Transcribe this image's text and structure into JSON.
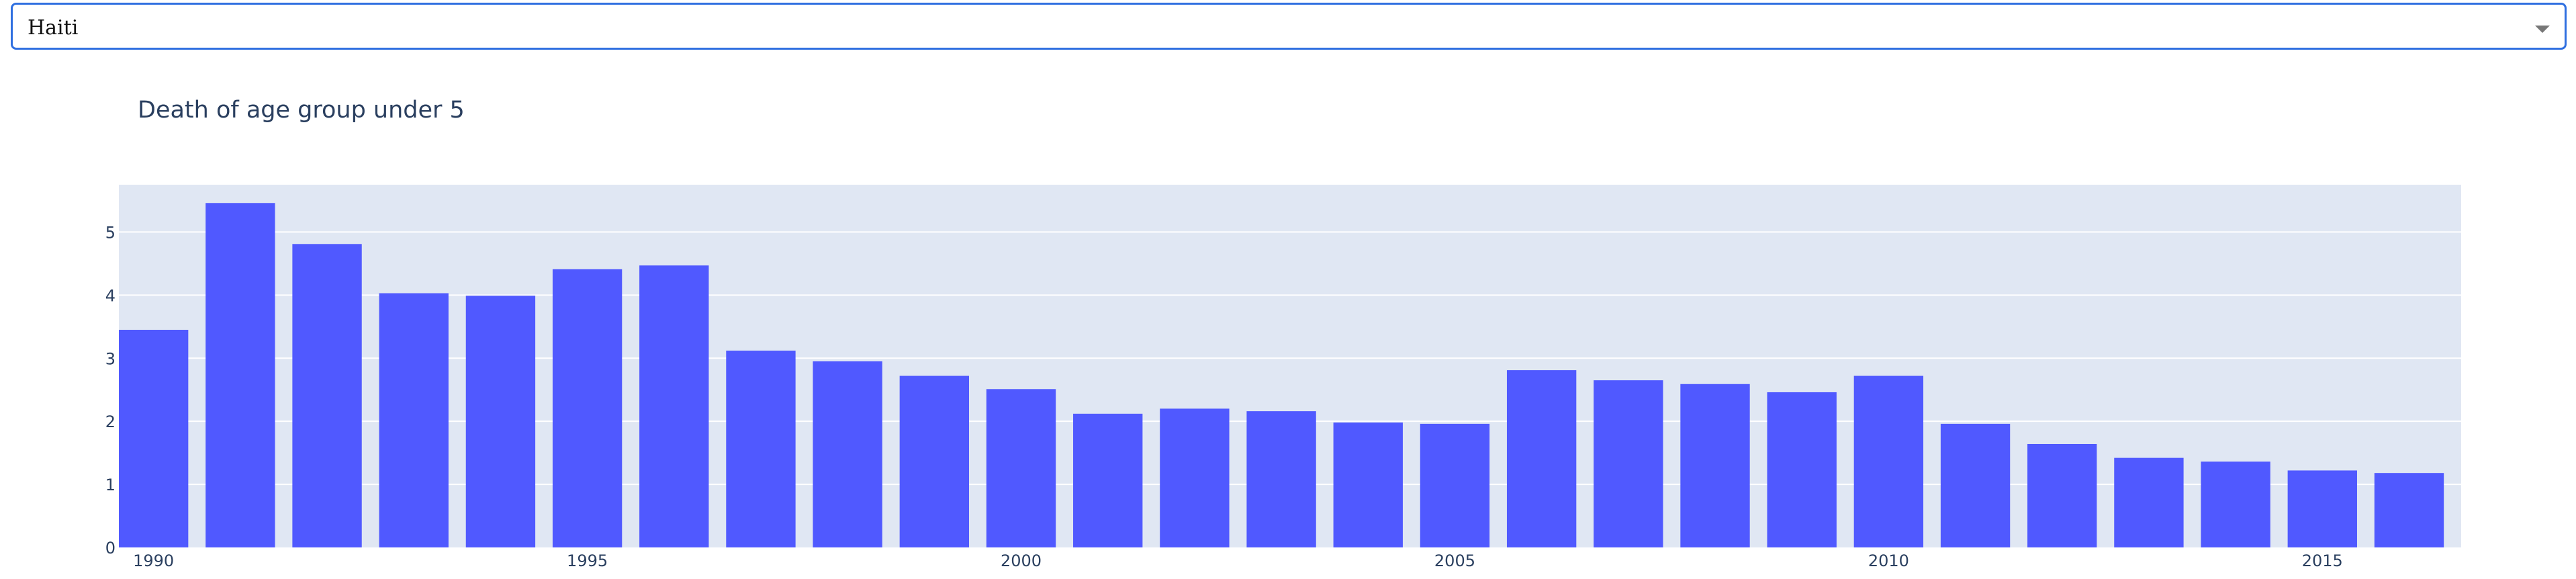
{
  "dropdown": {
    "selected": "Haiti"
  },
  "colors": {
    "bar": "#5059ff",
    "plot_bg": "#e0e7f3",
    "grid": "#ffffff",
    "dropdown_border": "#2f6fe0"
  },
  "chart_data": {
    "type": "bar",
    "title": "Death of age group under 5",
    "xlabel": "",
    "ylabel": "",
    "grid": true,
    "x": [
      1990,
      1991,
      1992,
      1993,
      1994,
      1995,
      1996,
      1997,
      1998,
      1999,
      2000,
      2001,
      2002,
      2003,
      2004,
      2005,
      2006,
      2007,
      2008,
      2009,
      2010,
      2011,
      2012,
      2013,
      2014,
      2015,
      2016
    ],
    "values": [
      3.45,
      5.46,
      4.81,
      4.03,
      3.99,
      4.41,
      4.47,
      3.12,
      2.95,
      2.72,
      2.51,
      2.12,
      2.2,
      2.16,
      1.98,
      1.96,
      2.81,
      2.65,
      2.59,
      2.46,
      2.72,
      1.96,
      1.64,
      1.42,
      1.36,
      1.22,
      1.18
    ],
    "xlim": [
      1989.6,
      2016.6
    ],
    "ylim": [
      0,
      5.75
    ],
    "xticks": [
      1990,
      1995,
      2000,
      2005,
      2010,
      2015
    ],
    "yticks": [
      0,
      1,
      2,
      3,
      4,
      5
    ]
  }
}
